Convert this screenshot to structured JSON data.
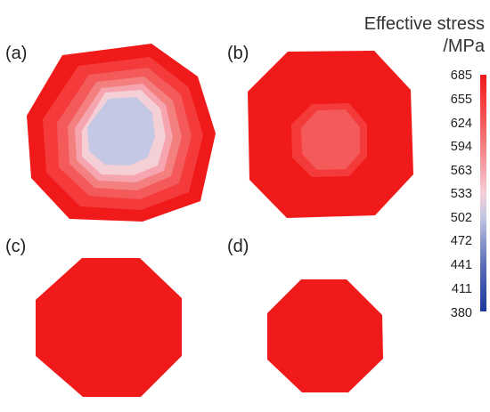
{
  "colorbar": {
    "title_line1": "Effective stress",
    "title_line2": "/MPa",
    "ticks": [
      "685",
      "655",
      "624",
      "594",
      "563",
      "533",
      "502",
      "472",
      "441",
      "411",
      "380"
    ],
    "colors": [
      "#f01a1a",
      "#f43a3a",
      "#f45a5a",
      "#f47f7f",
      "#f6a4ae",
      "#f5cfd6",
      "#c5c8e4",
      "#8d98cc",
      "#5e6fba",
      "#3a51aa",
      "#1a3a9c"
    ]
  },
  "panels": [
    {
      "label": "(a)"
    },
    {
      "label": "(b)"
    },
    {
      "label": "(c)"
    },
    {
      "label": "(d)"
    }
  ],
  "contour_colors": {
    "outer": "#f01a1a",
    "band2": "#f43a3a",
    "band3": "#f45a5a",
    "band4": "#f47f7f",
    "band5": "#f6a4ae",
    "band6": "#f5cfd6",
    "core": "#c5c8e4"
  }
}
